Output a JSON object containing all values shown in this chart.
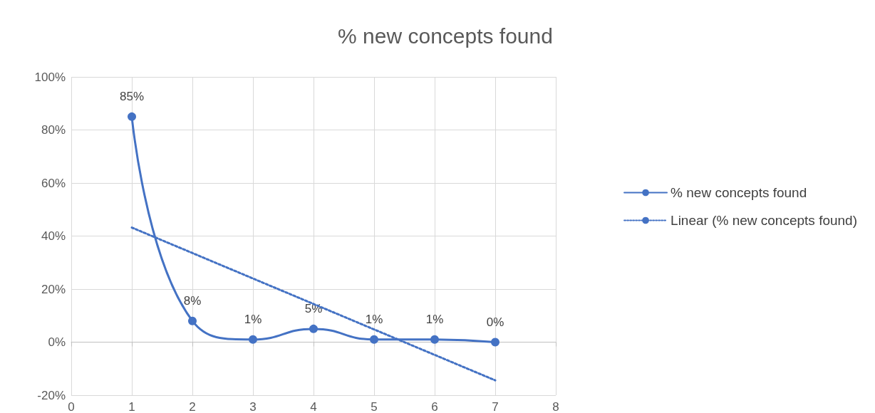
{
  "chart_data": {
    "type": "line",
    "title": "% new concepts found",
    "x": [
      1,
      2,
      3,
      4,
      5,
      6,
      7
    ],
    "series": [
      {
        "name": "% new concepts found",
        "color": "#4472c4",
        "values": [
          85,
          8,
          1,
          5,
          1,
          1,
          0
        ],
        "value_labels": [
          "85%",
          "8%",
          "1%",
          "5%",
          "1%",
          "1%",
          "0%"
        ],
        "marker": "circle",
        "line_style": "solid"
      },
      {
        "name": "Linear (% new concepts found)",
        "color": "#4472c4",
        "x": [
          1,
          7
        ],
        "values": [
          43.2,
          -14.4
        ],
        "marker": "none",
        "line_style": "dotted"
      }
    ],
    "xlim": [
      0,
      8
    ],
    "xticks": [
      0,
      1,
      2,
      3,
      4,
      5,
      6,
      7,
      8
    ],
    "ylim": [
      -20,
      100
    ],
    "yticks": [
      {
        "value": -20,
        "label": "-20%"
      },
      {
        "value": 0,
        "label": "0%"
      },
      {
        "value": 20,
        "label": "20%"
      },
      {
        "value": 40,
        "label": "40%"
      },
      {
        "value": 60,
        "label": "60%"
      },
      {
        "value": 80,
        "label": "80%"
      },
      {
        "value": 100,
        "label": "100%"
      }
    ],
    "grid": true,
    "legend": "right"
  }
}
